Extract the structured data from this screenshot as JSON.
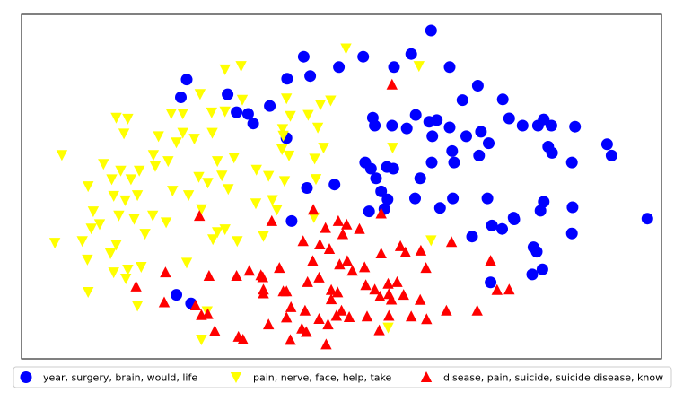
{
  "chart_data": {
    "type": "scatter",
    "title": "",
    "xlabel": "",
    "ylabel": "",
    "xlim": [
      0,
      100
    ],
    "ylim": [
      0,
      100
    ],
    "grid": false,
    "axis_ticks": false,
    "legend_position": "bottom",
    "series": [
      {
        "name": "year, surgery, brain, would, life",
        "marker": "circle",
        "color": "#0000ff",
        "points": [
          [
            64,
            95.3
          ],
          [
            53.4,
            87.7
          ],
          [
            60.9,
            88.5
          ],
          [
            58.2,
            84.7
          ],
          [
            49.6,
            84.7
          ],
          [
            45.1,
            82.1
          ],
          [
            44.1,
            87.7
          ],
          [
            41.5,
            81.3
          ],
          [
            25.8,
            81.1
          ],
          [
            32.2,
            76.8
          ],
          [
            24.9,
            75.9
          ],
          [
            38.8,
            73.4
          ],
          [
            35.4,
            71.1
          ],
          [
            33.6,
            71.6
          ],
          [
            36.2,
            68.3
          ],
          [
            68.9,
            75.1
          ],
          [
            66.9,
            84.7
          ],
          [
            76.2,
            69.8
          ],
          [
            71.3,
            79.3
          ],
          [
            75.2,
            75.3
          ],
          [
            64.9,
            69.3
          ],
          [
            61.6,
            70.8
          ],
          [
            57.9,
            67.7
          ],
          [
            55.2,
            67.7
          ],
          [
            54.9,
            70.0
          ],
          [
            60.2,
            66.9
          ],
          [
            66.9,
            67.2
          ],
          [
            63.7,
            68.8
          ],
          [
            69.5,
            64.6
          ],
          [
            71.8,
            65.9
          ],
          [
            71.5,
            59.0
          ],
          [
            67.3,
            60.3
          ],
          [
            64.2,
            64.6
          ],
          [
            73,
            62.6
          ],
          [
            41.4,
            64.1
          ],
          [
            78.3,
            67.7
          ],
          [
            80.7,
            67.7
          ],
          [
            81.6,
            69.5
          ],
          [
            82.8,
            67.7
          ],
          [
            86.5,
            67.4
          ],
          [
            82.9,
            59.8
          ],
          [
            82.3,
            61.6
          ],
          [
            91.5,
            62.3
          ],
          [
            92.2,
            59.0
          ],
          [
            86,
            57.0
          ],
          [
            57.1,
            55.7
          ],
          [
            53.7,
            57.0
          ],
          [
            54.6,
            55.2
          ],
          [
            58.1,
            55.2
          ],
          [
            64.1,
            57.0
          ],
          [
            67.6,
            57.0
          ],
          [
            62.3,
            52.4
          ],
          [
            55.4,
            52.4
          ],
          [
            48.9,
            50.6
          ],
          [
            44.6,
            49.6
          ],
          [
            56.2,
            48.6
          ],
          [
            57.2,
            46.3
          ],
          [
            61.5,
            46.6
          ],
          [
            67.4,
            46.6
          ],
          [
            72.8,
            46.6
          ],
          [
            65.4,
            43.8
          ],
          [
            54.3,
            42.8
          ],
          [
            56.7,
            43.5
          ],
          [
            76.9,
            41.0
          ],
          [
            81.1,
            43.0
          ],
          [
            81.6,
            45.6
          ],
          [
            77,
            40.5
          ],
          [
            73.5,
            38.7
          ],
          [
            75.1,
            37.7
          ],
          [
            70.4,
            35.5
          ],
          [
            86.1,
            44.0
          ],
          [
            86.0,
            36.4
          ],
          [
            97.8,
            40.7
          ],
          [
            42.2,
            40.0
          ],
          [
            80,
            32.4
          ],
          [
            80.5,
            31.1
          ],
          [
            81.4,
            26.0
          ],
          [
            79.8,
            24.5
          ],
          [
            73.3,
            22.2
          ],
          [
            24.2,
            18.6
          ],
          [
            26.5,
            16.1
          ]
        ]
      },
      {
        "name": "pain, nerve, face, help, take",
        "marker": "triangle-down",
        "color": "#ffff00",
        "points": [
          [
            50.7,
            90.1
          ],
          [
            62.1,
            85.0
          ],
          [
            31.8,
            84.0
          ],
          [
            34.3,
            85.0
          ],
          [
            27.9,
            76.9
          ],
          [
            34.5,
            75.2
          ],
          [
            41.4,
            75.6
          ],
          [
            46.7,
            73.8
          ],
          [
            48.3,
            75.0
          ],
          [
            29.7,
            71.5
          ],
          [
            31.8,
            71.8
          ],
          [
            42,
            70.5
          ],
          [
            44.8,
            70.8
          ],
          [
            46.3,
            67.1
          ],
          [
            40.8,
            66.7
          ],
          [
            14.8,
            70.0
          ],
          [
            16.6,
            69.7
          ],
          [
            23.4,
            71.2
          ],
          [
            25.2,
            71.2
          ],
          [
            16,
            65.4
          ],
          [
            21.4,
            64.6
          ],
          [
            25.2,
            65.6
          ],
          [
            27,
            63.9
          ],
          [
            24.2,
            62.8
          ],
          [
            29.8,
            65.6
          ],
          [
            40.9,
            64.8
          ],
          [
            47.2,
            61.3
          ],
          [
            58,
            61.3
          ],
          [
            6.3,
            59.2
          ],
          [
            12.8,
            56.6
          ],
          [
            20.6,
            59.2
          ],
          [
            22.9,
            57.4
          ],
          [
            20.9,
            55.9
          ],
          [
            18.4,
            54.6
          ],
          [
            30.6,
            57.4
          ],
          [
            33.2,
            58.4
          ],
          [
            40.7,
            60.8
          ],
          [
            41.8,
            59.0
          ],
          [
            45.8,
            58.1
          ],
          [
            15.5,
            54.6
          ],
          [
            17.1,
            52.1
          ],
          [
            14.1,
            52.1
          ],
          [
            27.7,
            52.8
          ],
          [
            29.1,
            51.1
          ],
          [
            31.3,
            53.2
          ],
          [
            36.7,
            54.9
          ],
          [
            38.6,
            53.1
          ],
          [
            41.1,
            51.6
          ],
          [
            46.0,
            52.2
          ],
          [
            10.4,
            50.1
          ],
          [
            11.2,
            42.8
          ],
          [
            14.4,
            47.3
          ],
          [
            16.2,
            46.0
          ],
          [
            18.1,
            47.5
          ],
          [
            23.6,
            48.8
          ],
          [
            26.1,
            47.5
          ],
          [
            32.3,
            49.3
          ],
          [
            28.1,
            43.4
          ],
          [
            36.6,
            45.1
          ],
          [
            39.2,
            46.1
          ],
          [
            39.9,
            43.3
          ],
          [
            10.9,
            37.8
          ],
          [
            12.2,
            39.1
          ],
          [
            15.2,
            41.6
          ],
          [
            17.6,
            40.6
          ],
          [
            20.5,
            41.6
          ],
          [
            22.6,
            39.6
          ],
          [
            19.3,
            36.3
          ],
          [
            29.9,
            34.7
          ],
          [
            30.6,
            36.8
          ],
          [
            31.8,
            37.6
          ],
          [
            33.7,
            34.2
          ],
          [
            37.8,
            35.6
          ],
          [
            45.7,
            41.1
          ],
          [
            64,
            34.4
          ],
          [
            5.2,
            33.7
          ],
          [
            9.5,
            34.2
          ],
          [
            13.9,
            30.6
          ],
          [
            14.8,
            33.1
          ],
          [
            10.3,
            28.8
          ],
          [
            14.4,
            25.1
          ],
          [
            16.6,
            25.9
          ],
          [
            18.7,
            26.7
          ],
          [
            16.3,
            23.3
          ],
          [
            25.8,
            27.9
          ],
          [
            10.4,
            19.4
          ],
          [
            18.1,
            15.4
          ],
          [
            28.1,
            5.6
          ],
          [
            57.3,
            9.1
          ],
          [
            29,
            13.8
          ]
        ]
      },
      {
        "name": "disease, pain, suicide, suicide disease, know",
        "marker": "triangle-up",
        "color": "#ff0000",
        "points": [
          [
            57.9,
            79.6
          ],
          [
            27.8,
            41.5
          ],
          [
            39.1,
            40.0
          ],
          [
            45.6,
            43.3
          ],
          [
            47.5,
            38.0
          ],
          [
            49.5,
            40.0
          ],
          [
            50.8,
            39.0
          ],
          [
            52.8,
            37.7
          ],
          [
            44.0,
            34.2
          ],
          [
            46.6,
            33.2
          ],
          [
            48.1,
            31.9
          ],
          [
            50.2,
            36.2
          ],
          [
            49.7,
            27.4
          ],
          [
            45.5,
            28.4
          ],
          [
            56.2,
            30.6
          ],
          [
            59.2,
            32.7
          ],
          [
            67.2,
            33.9
          ],
          [
            60,
            30.9
          ],
          [
            40.3,
            26.4
          ],
          [
            46.5,
            23.6
          ],
          [
            48.4,
            20.0
          ],
          [
            44.7,
            22.3
          ],
          [
            41.4,
            19.6
          ],
          [
            53.8,
            21.4
          ],
          [
            58.7,
            22.3
          ],
          [
            63.2,
            26.4
          ],
          [
            57.3,
            21.8
          ],
          [
            62.4,
            31.4
          ],
          [
            73.3,
            28.5
          ],
          [
            59.7,
            18.6
          ],
          [
            56,
            18.1
          ],
          [
            53.6,
            26.6
          ],
          [
            50.9,
            28.4
          ],
          [
            51.7,
            25.6
          ],
          [
            49.4,
            19.3
          ],
          [
            37.4,
            24.3
          ],
          [
            42.1,
            15.0
          ],
          [
            40.9,
            19.6
          ],
          [
            37.7,
            23.7
          ],
          [
            35.6,
            25.6
          ],
          [
            33.6,
            24.1
          ],
          [
            29.3,
            24.1
          ],
          [
            37.8,
            20.1
          ],
          [
            37.8,
            19.0
          ],
          [
            41.4,
            12.0
          ],
          [
            46.5,
            11.6
          ],
          [
            48.4,
            17.3
          ],
          [
            49.2,
            12.5
          ],
          [
            47.9,
            10.0
          ],
          [
            44.3,
            14.0
          ],
          [
            43.8,
            8.8
          ],
          [
            50,
            14.0
          ],
          [
            55.2,
            20.1
          ],
          [
            57.4,
            18.8
          ],
          [
            57.8,
            17.2
          ],
          [
            55.9,
            8.3
          ],
          [
            54.0,
            12.3
          ],
          [
            51.2,
            12.1
          ],
          [
            60.9,
            12.3
          ],
          [
            62.3,
            17.1
          ],
          [
            66.4,
            14.0
          ],
          [
            74.3,
            20.0
          ],
          [
            76.2,
            20.1
          ],
          [
            71.2,
            14.0
          ],
          [
            57.4,
            12.5
          ],
          [
            63.3,
            11.5
          ],
          [
            44.5,
            7.8
          ],
          [
            47.6,
            4.2
          ],
          [
            42,
            5.5
          ],
          [
            34.6,
            5.6
          ],
          [
            38.6,
            10.0
          ],
          [
            22.5,
            25.1
          ],
          [
            27.2,
            15.5
          ],
          [
            29.1,
            13.0
          ],
          [
            17.9,
            21.0
          ],
          [
            22.3,
            16.4
          ],
          [
            28.1,
            12.7
          ],
          [
            56.2,
            42.2
          ],
          [
            33.9,
            6.4
          ],
          [
            30.2,
            8.1
          ]
        ]
      }
    ]
  }
}
